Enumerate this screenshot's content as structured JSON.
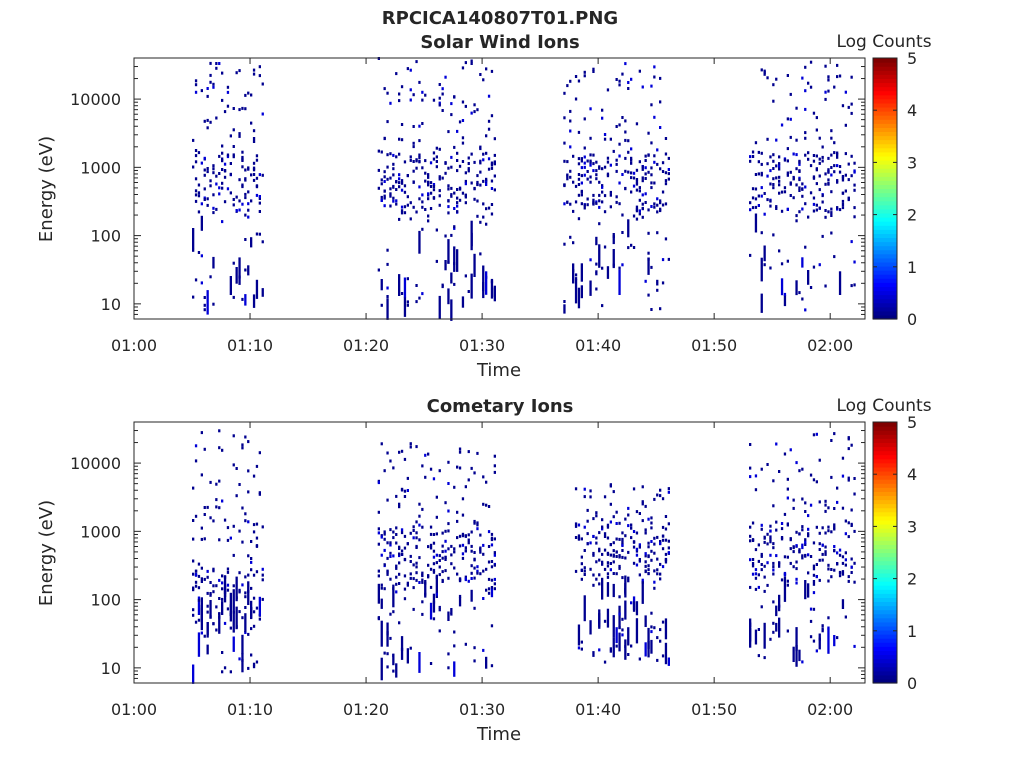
{
  "figure": {
    "title": "RPCICA140807T01.PNG"
  },
  "chart_data": [
    {
      "type": "heatmap",
      "title": "Solar Wind Ions",
      "xlabel": "Time",
      "ylabel": "Energy (eV)",
      "y_scale": "log",
      "xlim": [
        "01:00",
        "02:03"
      ],
      "ylim": [
        6,
        40000
      ],
      "x_tick_labels": [
        "01:00",
        "01:10",
        "01:20",
        "01:30",
        "01:40",
        "01:50",
        "02:00"
      ],
      "y_tick_labels": [
        "10",
        "100",
        "1000",
        "10000"
      ],
      "colorbar": {
        "label": "Log Counts",
        "range": [
          0,
          5
        ],
        "tick_labels": [
          "0",
          "1",
          "2",
          "3",
          "4",
          "5"
        ],
        "colormap": "jet"
      },
      "bursts": [
        {
          "start": "01:05",
          "end": "01:11",
          "dominant_energy": 600,
          "max_energy": 35000,
          "min_energy": 8,
          "level": 0.3
        },
        {
          "start": "01:21",
          "end": "01:31",
          "dominant_energy": 600,
          "max_energy": 40000,
          "min_energy": 8,
          "level": 0.3
        },
        {
          "start": "01:37",
          "end": "01:46",
          "dominant_energy": 600,
          "max_energy": 35000,
          "min_energy": 8,
          "level": 0.3
        },
        {
          "start": "01:53",
          "end": "02:02",
          "dominant_energy": 600,
          "max_energy": 35000,
          "min_energy": 8,
          "level": 0.3
        }
      ]
    },
    {
      "type": "heatmap",
      "title": "Cometary Ions",
      "xlabel": "Time",
      "ylabel": "Energy (eV)",
      "y_scale": "log",
      "xlim": [
        "01:00",
        "02:03"
      ],
      "ylim": [
        6,
        40000
      ],
      "x_tick_labels": [
        "01:00",
        "01:10",
        "01:20",
        "01:30",
        "01:40",
        "01:50",
        "02:00"
      ],
      "y_tick_labels": [
        "10",
        "100",
        "1000",
        "10000"
      ],
      "colorbar": {
        "label": "Log Counts",
        "range": [
          0,
          5
        ],
        "tick_labels": [
          "0",
          "1",
          "2",
          "3",
          "4",
          "5"
        ],
        "colormap": "jet"
      },
      "bursts": [
        {
          "start": "01:05",
          "end": "01:11",
          "dominant_energy": 100,
          "max_energy": 30000,
          "min_energy": 8,
          "level": 0.3
        },
        {
          "start": "01:21",
          "end": "01:31",
          "dominant_energy": 400,
          "max_energy": 20000,
          "min_energy": 8,
          "level": 0.3
        },
        {
          "start": "01:38",
          "end": "01:46",
          "dominant_energy": 500,
          "max_energy": 6000,
          "min_energy": 12,
          "level": 0.3
        },
        {
          "start": "01:53",
          "end": "02:02",
          "dominant_energy": 500,
          "max_energy": 28000,
          "min_energy": 12,
          "level": 0.3
        }
      ]
    }
  ]
}
